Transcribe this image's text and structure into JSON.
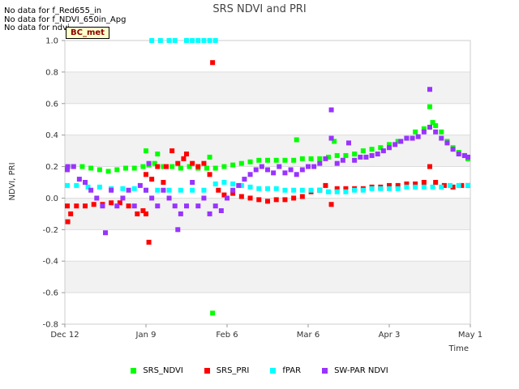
{
  "nodata_messages": [
    "No data for f_Red655_in",
    "No data for f_NDVI_650in_Apg",
    "No data for ndvi"
  ],
  "site_badge": "BC_met",
  "chart_data": {
    "type": "scatter",
    "title": "SRS NDVI and PRI",
    "xlabel": "Time",
    "ylabel": "NDVI, PRI",
    "xlim": [
      0,
      140
    ],
    "ylim": [
      -0.8,
      1.0
    ],
    "yticks": [
      -0.8,
      -0.6,
      -0.4,
      -0.2,
      0.0,
      0.2,
      0.4,
      0.6,
      0.8,
      1.0
    ],
    "ytick_labels": [
      "-0.8",
      "-0.6",
      "-0.4",
      "-0.2",
      "0.0",
      "0.2",
      "0.4",
      "0.6",
      "0.8",
      "1.0"
    ],
    "xticks": [
      0,
      28,
      56,
      84,
      112,
      140
    ],
    "xtick_labels": [
      "Dec 12",
      "Jan 9",
      "Feb 6",
      "Mar 6",
      "Apr 3",
      "May 1"
    ],
    "x_unit": "days since Dec 12",
    "legend_position": "bottom",
    "series": [
      {
        "name": "SRS_NDVI",
        "color": "#00ff00",
        "points": [
          [
            0,
            0.19
          ],
          [
            3,
            0.2
          ],
          [
            6,
            0.2
          ],
          [
            9,
            0.19
          ],
          [
            12,
            0.18
          ],
          [
            15,
            0.17
          ],
          [
            18,
            0.18
          ],
          [
            21,
            0.19
          ],
          [
            24,
            0.19
          ],
          [
            27,
            0.2
          ],
          [
            28,
            0.3
          ],
          [
            29,
            0.21
          ],
          [
            31,
            0.22
          ],
          [
            32,
            0.28
          ],
          [
            34,
            0.2
          ],
          [
            37,
            0.2
          ],
          [
            40,
            0.19
          ],
          [
            43,
            0.2
          ],
          [
            46,
            0.19
          ],
          [
            49,
            0.19
          ],
          [
            50,
            0.26
          ],
          [
            52,
            0.19
          ],
          [
            55,
            0.2
          ],
          [
            58,
            0.21
          ],
          [
            61,
            0.22
          ],
          [
            64,
            0.23
          ],
          [
            67,
            0.24
          ],
          [
            70,
            0.24
          ],
          [
            73,
            0.24
          ],
          [
            76,
            0.24
          ],
          [
            79,
            0.24
          ],
          [
            80,
            0.37
          ],
          [
            82,
            0.25
          ],
          [
            85,
            0.25
          ],
          [
            88,
            0.25
          ],
          [
            91,
            0.26
          ],
          [
            93,
            0.36
          ],
          [
            94,
            0.27
          ],
          [
            97,
            0.27
          ],
          [
            100,
            0.28
          ],
          [
            103,
            0.3
          ],
          [
            106,
            0.31
          ],
          [
            109,
            0.32
          ],
          [
            112,
            0.34
          ],
          [
            115,
            0.36
          ],
          [
            118,
            0.38
          ],
          [
            121,
            0.42
          ],
          [
            124,
            0.44
          ],
          [
            126,
            0.58
          ],
          [
            127,
            0.48
          ],
          [
            128,
            0.46
          ],
          [
            130,
            0.42
          ],
          [
            132,
            0.36
          ],
          [
            134,
            0.32
          ],
          [
            136,
            0.29
          ],
          [
            138,
            0.27
          ],
          [
            140,
            0.25
          ],
          [
            51,
            -0.73
          ]
        ]
      },
      {
        "name": "SRS_PRI",
        "color": "#ff0000",
        "points": [
          [
            0,
            -0.05
          ],
          [
            1,
            -0.15
          ],
          [
            2,
            -0.1
          ],
          [
            4,
            -0.05
          ],
          [
            7,
            -0.05
          ],
          [
            10,
            -0.04
          ],
          [
            13,
            -0.04
          ],
          [
            16,
            -0.03
          ],
          [
            19,
            -0.03
          ],
          [
            22,
            -0.05
          ],
          [
            25,
            -0.1
          ],
          [
            27,
            -0.08
          ],
          [
            28,
            -0.1
          ],
          [
            28,
            0.15
          ],
          [
            29,
            -0.28
          ],
          [
            30,
            0.12
          ],
          [
            32,
            0.2
          ],
          [
            34,
            0.1
          ],
          [
            35,
            0.2
          ],
          [
            37,
            0.3
          ],
          [
            39,
            0.22
          ],
          [
            41,
            0.25
          ],
          [
            42,
            0.28
          ],
          [
            44,
            0.22
          ],
          [
            46,
            0.2
          ],
          [
            48,
            0.22
          ],
          [
            50,
            0.15
          ],
          [
            51,
            0.86
          ],
          [
            53,
            0.05
          ],
          [
            55,
            0.02
          ],
          [
            58,
            0.03
          ],
          [
            61,
            0.01
          ],
          [
            64,
            0.0
          ],
          [
            67,
            -0.01
          ],
          [
            70,
            -0.02
          ],
          [
            73,
            -0.01
          ],
          [
            76,
            -0.01
          ],
          [
            79,
            0.0
          ],
          [
            82,
            0.01
          ],
          [
            85,
            0.04
          ],
          [
            88,
            0.05
          ],
          [
            90,
            0.08
          ],
          [
            92,
            -0.04
          ],
          [
            94,
            0.06
          ],
          [
            97,
            0.06
          ],
          [
            100,
            0.06
          ],
          [
            103,
            0.06
          ],
          [
            106,
            0.07
          ],
          [
            109,
            0.07
          ],
          [
            112,
            0.08
          ],
          [
            115,
            0.08
          ],
          [
            118,
            0.09
          ],
          [
            121,
            0.09
          ],
          [
            124,
            0.1
          ],
          [
            126,
            0.2
          ],
          [
            128,
            0.1
          ],
          [
            131,
            0.08
          ],
          [
            134,
            0.07
          ],
          [
            137,
            0.08
          ],
          [
            140,
            0.08
          ]
        ]
      },
      {
        "name": "fPAR",
        "color": "#00ffff",
        "points": [
          [
            30,
            1.0
          ],
          [
            33,
            1.0
          ],
          [
            36,
            1.0
          ],
          [
            38,
            1.0
          ],
          [
            42,
            1.0
          ],
          [
            44,
            1.0
          ],
          [
            46,
            1.0
          ],
          [
            48,
            1.0
          ],
          [
            50,
            1.0
          ],
          [
            52,
            1.0
          ],
          [
            0,
            0.08
          ],
          [
            4,
            0.08
          ],
          [
            8,
            0.07
          ],
          [
            12,
            0.07
          ],
          [
            16,
            0.06
          ],
          [
            20,
            0.06
          ],
          [
            24,
            0.06
          ],
          [
            28,
            0.05
          ],
          [
            32,
            0.05
          ],
          [
            36,
            0.05
          ],
          [
            40,
            0.05
          ],
          [
            44,
            0.05
          ],
          [
            48,
            0.05
          ],
          [
            52,
            0.09
          ],
          [
            55,
            0.1
          ],
          [
            58,
            0.09
          ],
          [
            61,
            0.08
          ],
          [
            64,
            0.07
          ],
          [
            67,
            0.06
          ],
          [
            70,
            0.06
          ],
          [
            73,
            0.06
          ],
          [
            76,
            0.05
          ],
          [
            79,
            0.05
          ],
          [
            82,
            0.05
          ],
          [
            85,
            0.05
          ],
          [
            88,
            0.05
          ],
          [
            91,
            0.04
          ],
          [
            94,
            0.04
          ],
          [
            97,
            0.04
          ],
          [
            100,
            0.05
          ],
          [
            103,
            0.05
          ],
          [
            106,
            0.06
          ],
          [
            109,
            0.06
          ],
          [
            112,
            0.06
          ],
          [
            115,
            0.06
          ],
          [
            118,
            0.07
          ],
          [
            121,
            0.07
          ],
          [
            124,
            0.07
          ],
          [
            127,
            0.07
          ],
          [
            130,
            0.07
          ],
          [
            133,
            0.08
          ],
          [
            136,
            0.08
          ],
          [
            140,
            0.08
          ]
        ]
      },
      {
        "name": "SW-PAR NDVI",
        "color": "#9933ff",
        "points": [
          [
            0,
            0.18
          ],
          [
            1,
            0.2
          ],
          [
            3,
            0.2
          ],
          [
            5,
            0.12
          ],
          [
            7,
            0.1
          ],
          [
            9,
            0.05
          ],
          [
            11,
            0.0
          ],
          [
            13,
            -0.05
          ],
          [
            14,
            -0.22
          ],
          [
            16,
            0.05
          ],
          [
            18,
            -0.05
          ],
          [
            20,
            0.0
          ],
          [
            22,
            0.05
          ],
          [
            24,
            -0.05
          ],
          [
            26,
            0.08
          ],
          [
            28,
            0.05
          ],
          [
            29,
            0.22
          ],
          [
            30,
            0.0
          ],
          [
            32,
            -0.05
          ],
          [
            34,
            0.05
          ],
          [
            36,
            0.0
          ],
          [
            38,
            -0.05
          ],
          [
            39,
            -0.2
          ],
          [
            40,
            -0.1
          ],
          [
            42,
            -0.05
          ],
          [
            44,
            0.1
          ],
          [
            46,
            -0.05
          ],
          [
            48,
            0.0
          ],
          [
            50,
            -0.1
          ],
          [
            52,
            -0.05
          ],
          [
            54,
            -0.08
          ],
          [
            56,
            0.0
          ],
          [
            58,
            0.05
          ],
          [
            60,
            0.08
          ],
          [
            62,
            0.12
          ],
          [
            64,
            0.15
          ],
          [
            66,
            0.18
          ],
          [
            68,
            0.2
          ],
          [
            70,
            0.18
          ],
          [
            72,
            0.16
          ],
          [
            74,
            0.2
          ],
          [
            76,
            0.16
          ],
          [
            78,
            0.18
          ],
          [
            80,
            0.15
          ],
          [
            82,
            0.18
          ],
          [
            84,
            0.2
          ],
          [
            86,
            0.2
          ],
          [
            88,
            0.22
          ],
          [
            90,
            0.25
          ],
          [
            92,
            0.38
          ],
          [
            92,
            0.56
          ],
          [
            94,
            0.22
          ],
          [
            96,
            0.24
          ],
          [
            98,
            0.35
          ],
          [
            100,
            0.24
          ],
          [
            102,
            0.26
          ],
          [
            104,
            0.26
          ],
          [
            106,
            0.27
          ],
          [
            108,
            0.28
          ],
          [
            110,
            0.3
          ],
          [
            112,
            0.32
          ],
          [
            114,
            0.34
          ],
          [
            116,
            0.36
          ],
          [
            118,
            0.38
          ],
          [
            120,
            0.38
          ],
          [
            122,
            0.39
          ],
          [
            124,
            0.42
          ],
          [
            126,
            0.45
          ],
          [
            126,
            0.69
          ],
          [
            128,
            0.42
          ],
          [
            130,
            0.38
          ],
          [
            132,
            0.35
          ],
          [
            134,
            0.31
          ],
          [
            136,
            0.28
          ],
          [
            138,
            0.27
          ],
          [
            140,
            0.26
          ]
        ]
      }
    ]
  }
}
